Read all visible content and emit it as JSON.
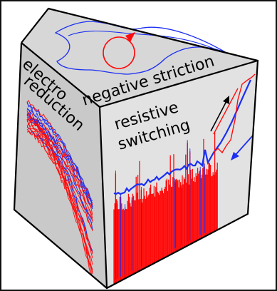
{
  "faces": {
    "top": {
      "label": "negative striction",
      "color": "#d7d7d7"
    },
    "left": {
      "label_line1": "electro",
      "label_line2": "reduction",
      "color": "#c9c9c9"
    },
    "right": {
      "label_line1": "resistive",
      "label_line2": "switching",
      "color": "#e2e2e2"
    }
  },
  "colors": {
    "blue": "#1c2ff2",
    "red": "#ff0a0a",
    "black": "#000000",
    "edge": "#000000",
    "border": "#111111"
  },
  "icons": {
    "hysteresis_loop": "blue-hysteresis-loop",
    "rotation": "red-circular-arrow-icon",
    "arrow_up": "black-up-arrow-icon",
    "arrow_down": "blue-down-arrow-icon"
  }
}
